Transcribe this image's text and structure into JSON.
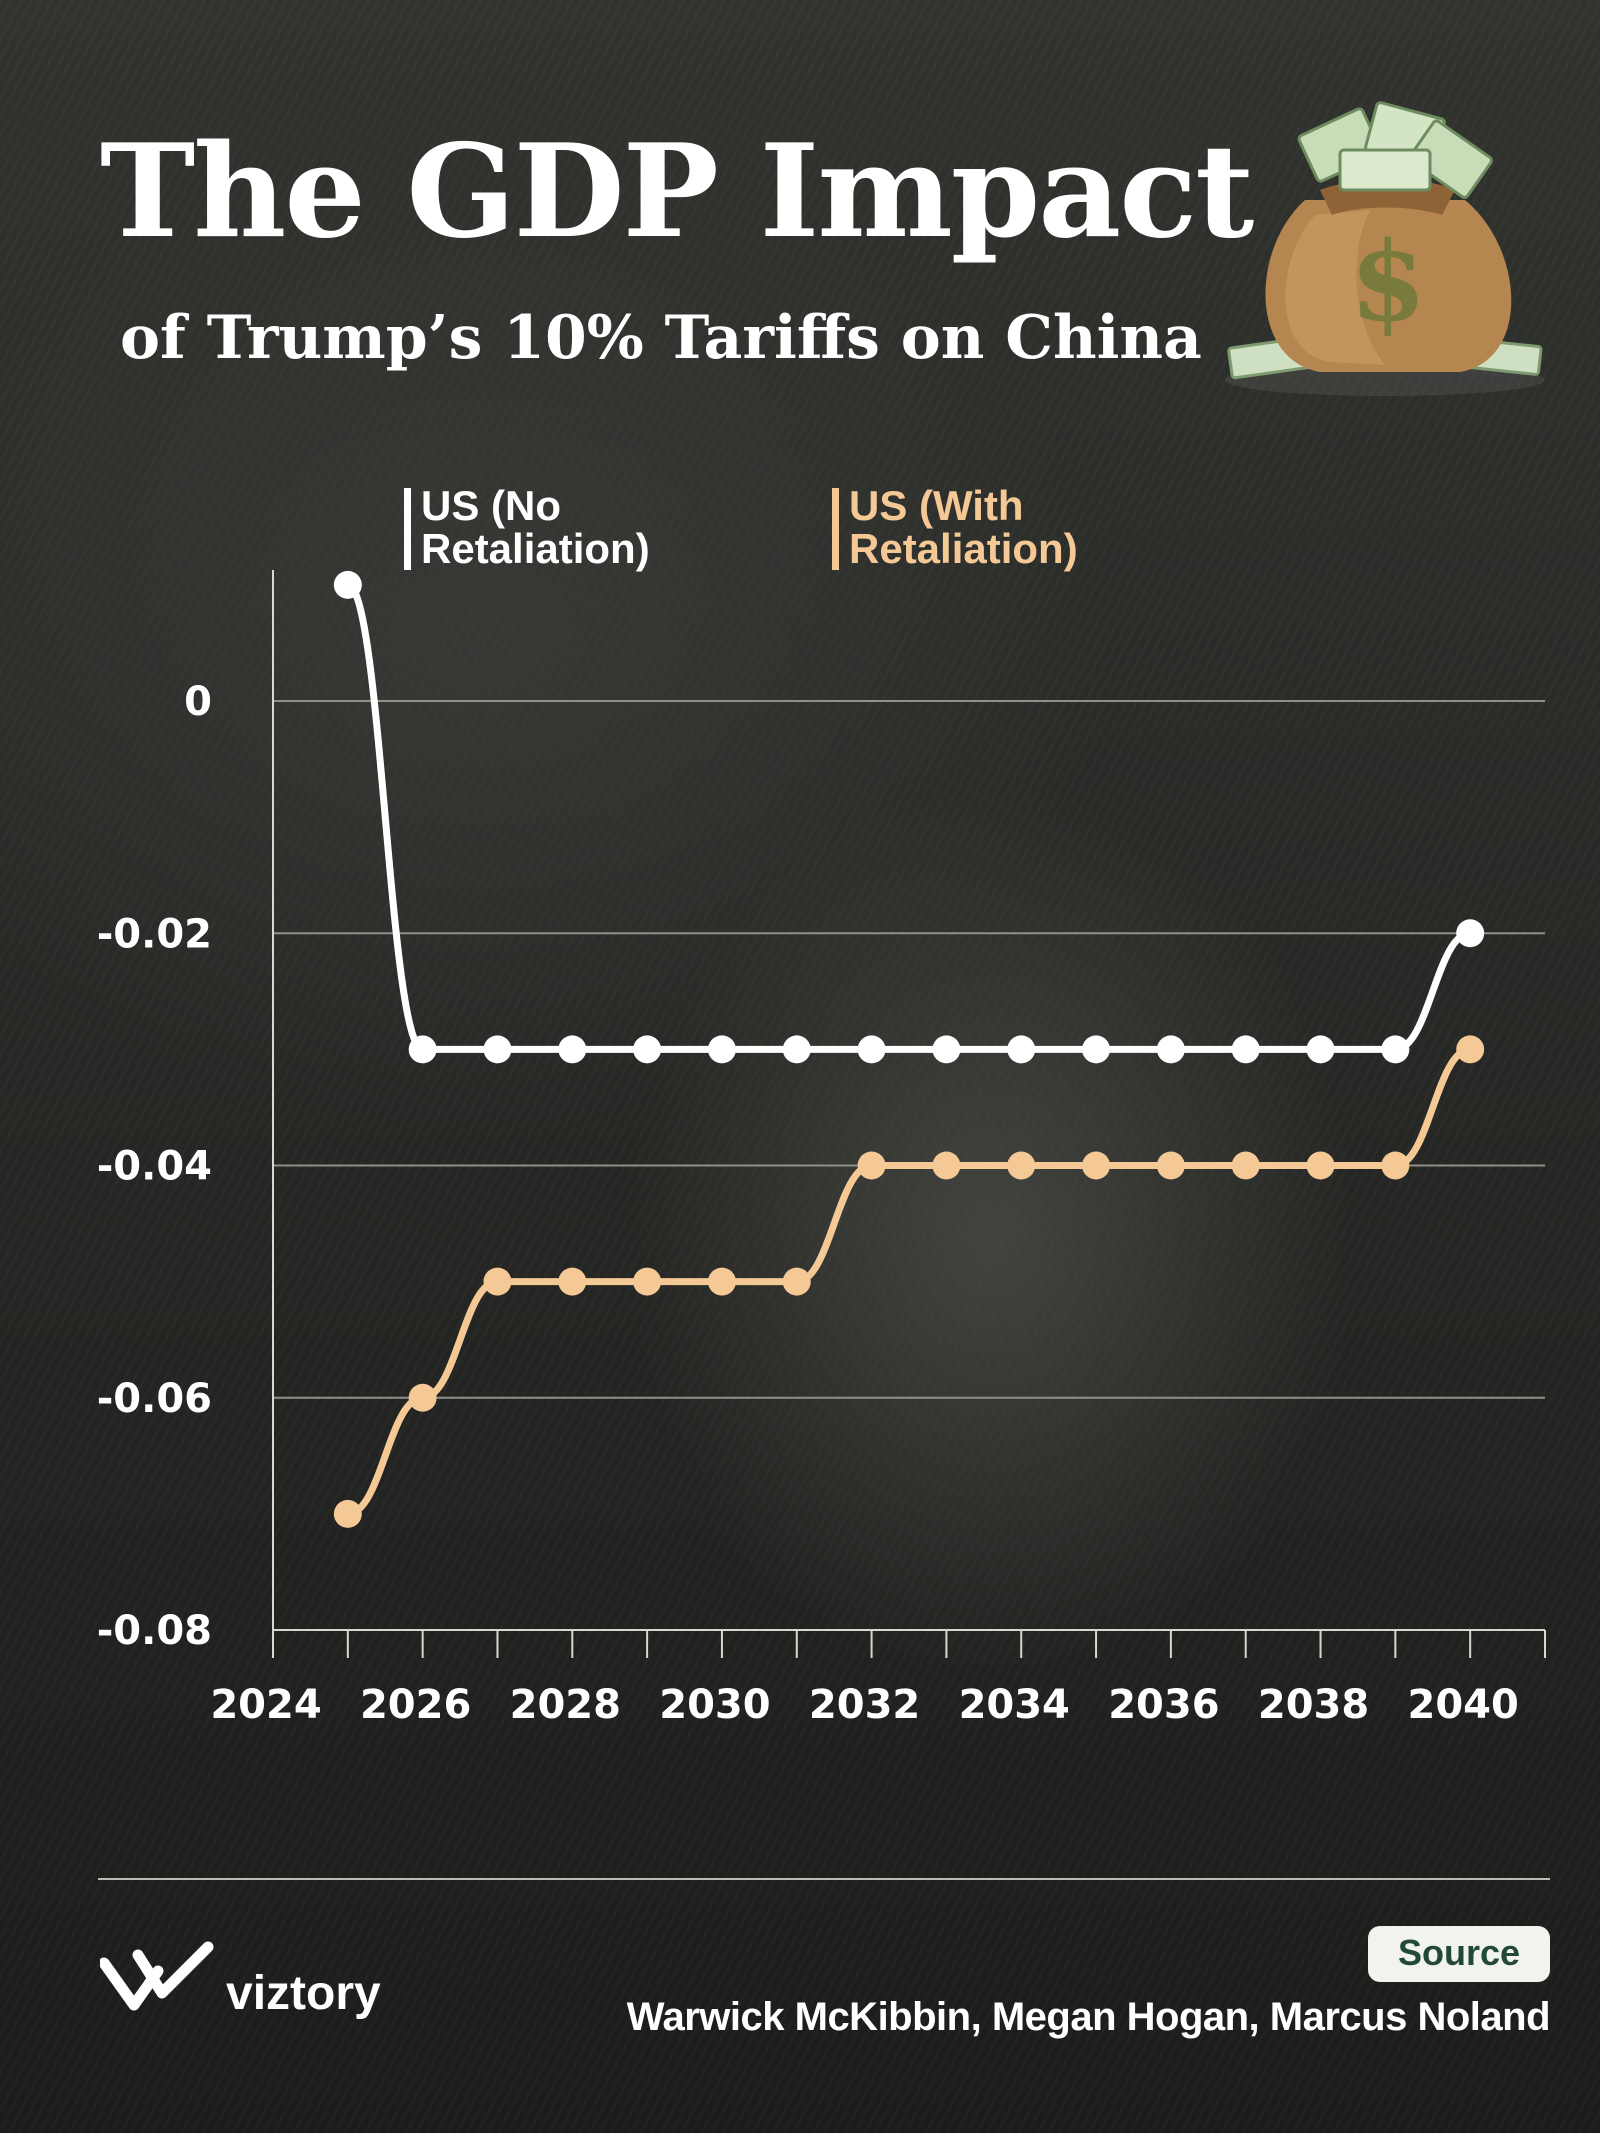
{
  "header": {
    "title": "The GDP Impact",
    "subtitle": "of Trump’s 10% Tariffs on China"
  },
  "icons": {
    "illustration": "money-bag-icon",
    "brand": "viztory-logo"
  },
  "colors": {
    "background": "#2a2b29",
    "no_retaliation": "#ffffff",
    "with_retaliation": "#f5c995",
    "grid": "#8f908a",
    "source_text": "#22483a"
  },
  "chart_data": {
    "type": "line",
    "title": "",
    "xlabel": "",
    "ylabel": "",
    "x": [
      2025,
      2026,
      2027,
      2028,
      2029,
      2030,
      2031,
      2032,
      2033,
      2034,
      2035,
      2036,
      2037,
      2038,
      2039,
      2040
    ],
    "series": [
      {
        "name": "US (No Retaliation)",
        "color": "#ffffff",
        "values": [
          0.01,
          -0.03,
          -0.03,
          -0.03,
          -0.03,
          -0.03,
          -0.03,
          -0.03,
          -0.03,
          -0.03,
          -0.03,
          -0.03,
          -0.03,
          -0.03,
          -0.03,
          -0.02
        ]
      },
      {
        "name": "US (With Retaliation)",
        "color": "#f5c995",
        "values": [
          -0.07,
          -0.06,
          -0.05,
          -0.05,
          -0.05,
          -0.05,
          -0.05,
          -0.04,
          -0.04,
          -0.04,
          -0.04,
          -0.04,
          -0.04,
          -0.04,
          -0.04,
          -0.03
        ]
      }
    ],
    "xlim": [
      2024,
      2041
    ],
    "ylim": [
      -0.08,
      0.012
    ],
    "x_ticks": [
      2024,
      2026,
      2028,
      2030,
      2032,
      2034,
      2036,
      2038,
      2040
    ],
    "x_tick_labels": [
      "2024",
      "2026",
      "2028",
      "2030",
      "2032",
      "2034",
      "2036",
      "2038",
      "2040"
    ],
    "y_ticks": [
      0,
      -0.02,
      -0.04,
      -0.06,
      -0.08
    ],
    "y_tick_labels": [
      "0",
      "-0.02",
      "-0.04",
      "-0.06",
      "-0.08"
    ],
    "grid": true,
    "legend_position": "top"
  },
  "footer": {
    "brand": "viztory",
    "source_label": "Source",
    "authors": "Warwick McKibbin, Megan Hogan, Marcus Noland"
  }
}
